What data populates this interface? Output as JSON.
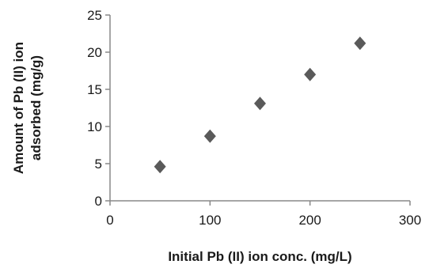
{
  "chart_data": {
    "type": "scatter",
    "title": "",
    "xlabel": "Initial Pb (II) ion conc. (mg/L)",
    "ylabel_lines": [
      "Amount of Pb (II) ion",
      "adsorbed (mg/g)"
    ],
    "xlim": [
      0,
      300
    ],
    "ylim": [
      0,
      25
    ],
    "xticks": [
      0,
      100,
      200,
      300
    ],
    "yticks": [
      0,
      5,
      10,
      15,
      20,
      25
    ],
    "grid": false,
    "legend": "none",
    "marker": "diamond",
    "marker_color": "#5a5a5a",
    "axis_color": "#888888",
    "series": [
      {
        "x": [
          50,
          100,
          150,
          200,
          250
        ],
        "y": [
          4.6,
          8.7,
          13.1,
          17.0,
          21.2
        ]
      }
    ]
  }
}
